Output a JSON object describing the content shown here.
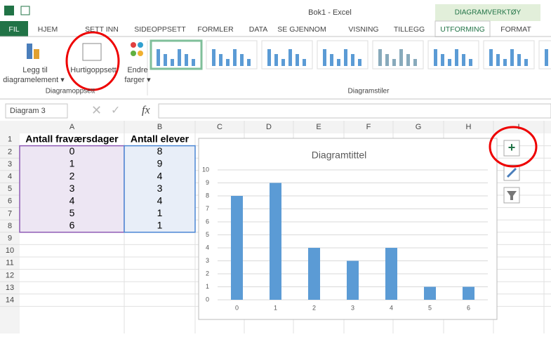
{
  "titlebar": {
    "title": "Bok1 - Excel",
    "context_tab": "DIAGRAMVERKTØY"
  },
  "tabs": [
    "FIL",
    "HJEM",
    "SETT INN",
    "SIDEOPPSETT",
    "FORMLER",
    "DATA",
    "SE GJENNOM",
    "VISNING",
    "TILLEGG",
    "UTFORMING",
    "FORMAT"
  ],
  "ribbon": {
    "buttons": [
      "Legg til",
      "diagramelement ▾",
      "Hurtigoppsett",
      "Endre",
      "farger ▾"
    ],
    "groups": [
      "Diagramoppsett",
      "Diagramstiler"
    ]
  },
  "formula_bar": {
    "name_box": "Diagram 3",
    "fx": "fx"
  },
  "sheet": {
    "columns": [
      "A",
      "B",
      "C",
      "D",
      "E",
      "F",
      "G",
      "H",
      "I"
    ],
    "rows": [
      1,
      2,
      3,
      4,
      5,
      6,
      7,
      8,
      9,
      10,
      11,
      12,
      13,
      14
    ],
    "cells": [
      [
        "Antall fraværsdager",
        "Antall elever"
      ],
      [
        0,
        8
      ],
      [
        1,
        9
      ],
      [
        2,
        4
      ],
      [
        3,
        3
      ],
      [
        4,
        4
      ],
      [
        5,
        1
      ],
      [
        6,
        1
      ]
    ]
  },
  "chart_data": {
    "type": "bar",
    "title": "Diagramtittel",
    "categories": [
      "0",
      "1",
      "2",
      "3",
      "4",
      "5",
      "6"
    ],
    "values": [
      8,
      9,
      4,
      3,
      4,
      1,
      1
    ],
    "color": "#5b9bd5",
    "ylim": [
      0,
      10
    ],
    "yticks": [
      0,
      1,
      2,
      3,
      4,
      5,
      6,
      7,
      8,
      9,
      10
    ],
    "grid": true
  }
}
